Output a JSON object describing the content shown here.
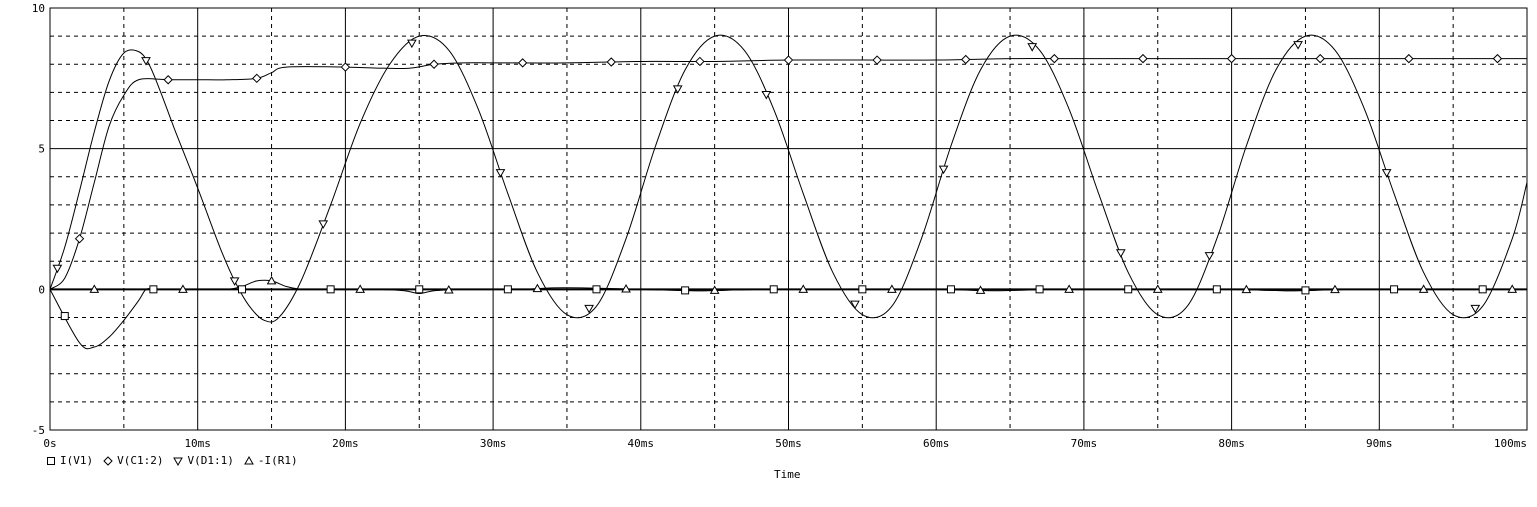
{
  "chart_data": {
    "type": "line",
    "xlabel": "Time",
    "xlim": [
      0,
      100
    ],
    "ylim": [
      -5,
      10
    ],
    "x_ticks": [
      "0s",
      "10ms",
      "20ms",
      "30ms",
      "40ms",
      "50ms",
      "60ms",
      "70ms",
      "80ms",
      "90ms",
      "100ms"
    ],
    "y_ticks": [
      "10",
      "5",
      "0",
      "-5"
    ],
    "grid": "dashed",
    "legend_position": "bottom-left",
    "series": [
      {
        "name": "I(V1)",
        "marker": "square",
        "x": [
          0,
          2,
          3,
          4,
          5,
          6,
          6.5,
          7,
          8,
          10,
          12,
          14,
          16,
          18,
          20,
          24,
          28,
          32,
          36,
          40,
          44,
          48,
          52,
          56,
          60,
          64,
          68,
          72,
          76,
          80,
          84,
          88,
          92,
          96,
          100
        ],
        "values": [
          0,
          -1.9,
          -2.05,
          -1.7,
          -1.1,
          -0.4,
          0,
          0,
          0,
          0,
          0,
          0,
          0,
          0,
          0,
          0,
          0,
          0,
          0,
          0,
          -0.05,
          0,
          0,
          0,
          0,
          0,
          0,
          0,
          0,
          0,
          -0.05,
          0,
          0,
          0,
          0
        ]
      },
      {
        "name": "V(C1:2)",
        "marker": "diamond",
        "x": [
          0,
          1,
          2,
          3,
          4,
          5,
          6,
          8,
          10,
          12,
          14,
          15,
          16,
          20,
          24,
          26,
          28,
          30,
          35,
          40,
          45,
          50,
          55,
          60,
          65,
          70,
          75,
          80,
          85,
          90,
          95,
          100
        ],
        "values": [
          0,
          0.4,
          1.8,
          3.8,
          5.8,
          6.9,
          7.45,
          7.45,
          7.45,
          7.45,
          7.5,
          7.7,
          7.9,
          7.9,
          7.85,
          8.0,
          8.05,
          8.05,
          8.05,
          8.1,
          8.1,
          8.15,
          8.15,
          8.15,
          8.2,
          8.2,
          8.2,
          8.2,
          8.2,
          8.2,
          8.2,
          8.2
        ]
      },
      {
        "name": "V(D1:1)",
        "marker": "triangle-down",
        "x": [
          0,
          1,
          2,
          3,
          4,
          5,
          6,
          6.7,
          7.5,
          8.5,
          10,
          11.5,
          12.5,
          13.5,
          14.5,
          15.5,
          17,
          19,
          21,
          23,
          25,
          27,
          29,
          31,
          33,
          35,
          37,
          39,
          41,
          43,
          45,
          47,
          49,
          51,
          53,
          55,
          57,
          59,
          61,
          63,
          65,
          67,
          69,
          71,
          73,
          75,
          77,
          79,
          81,
          83,
          85,
          87,
          89,
          91,
          93,
          95,
          97,
          99,
          100
        ],
        "values": [
          0,
          1.5,
          3.5,
          5.6,
          7.4,
          8.4,
          8.45,
          8.0,
          7.0,
          5.6,
          3.6,
          1.5,
          0.3,
          -0.6,
          -1.1,
          -1.0,
          0.3,
          3.0,
          5.9,
          8.0,
          9.0,
          8.5,
          6.4,
          3.4,
          0.6,
          -0.9,
          -0.6,
          1.8,
          5.1,
          7.8,
          9.0,
          8.5,
          6.4,
          3.4,
          0.6,
          -0.9,
          -0.6,
          1.8,
          5.1,
          7.8,
          9.0,
          8.5,
          6.4,
          3.4,
          0.6,
          -0.9,
          -0.6,
          1.8,
          5.1,
          7.8,
          9.0,
          8.5,
          6.4,
          3.4,
          0.6,
          -0.9,
          -0.6,
          1.8,
          3.8
        ]
      },
      {
        "name": "-I(R1)",
        "marker": "triangle-up",
        "x": [
          0,
          1,
          2,
          4,
          6,
          8,
          10,
          12,
          13,
          14,
          15,
          16,
          17,
          18,
          20,
          22,
          24,
          25,
          26,
          28,
          30,
          32,
          34,
          36,
          40,
          44,
          48,
          52,
          56,
          60,
          64,
          68,
          72,
          76,
          80,
          84,
          88,
          92,
          96,
          100
        ],
        "values": [
          0,
          0,
          0,
          0,
          0,
          0,
          0,
          0,
          0.1,
          0.3,
          0.3,
          0.1,
          0,
          0,
          0,
          0,
          -0.05,
          -0.15,
          -0.05,
          0,
          0,
          0,
          0.05,
          0.05,
          0,
          -0.05,
          0,
          0,
          0,
          0,
          -0.05,
          0,
          0,
          0,
          0,
          -0.05,
          0,
          0,
          0,
          0
        ]
      }
    ]
  }
}
